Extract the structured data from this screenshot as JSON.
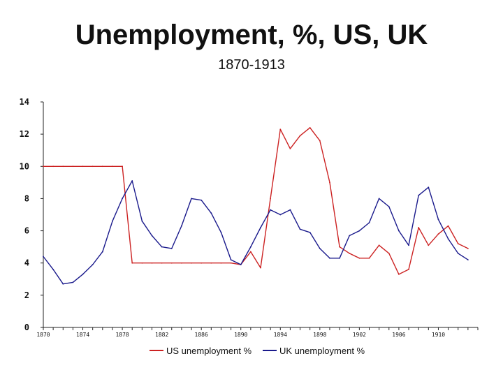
{
  "title": "Unemployment, %, US, UK",
  "subtitle": "1870-1913",
  "chart_data": {
    "type": "line",
    "title": "Unemployment, %, US, UK",
    "subtitle": "1870-1913",
    "xlabel": "",
    "ylabel": "",
    "xlim": [
      1870,
      1914
    ],
    "ylim": [
      0,
      14
    ],
    "y_ticks": [
      0,
      2,
      4,
      6,
      8,
      10,
      12,
      14
    ],
    "x_ticks": [
      1870,
      1874,
      1878,
      1882,
      1886,
      1890,
      1894,
      1898,
      1902,
      1906,
      1910
    ],
    "grid": false,
    "legend_position": "bottom",
    "x": [
      1870,
      1871,
      1872,
      1873,
      1874,
      1875,
      1876,
      1877,
      1878,
      1879,
      1880,
      1881,
      1882,
      1883,
      1884,
      1885,
      1886,
      1887,
      1888,
      1889,
      1890,
      1891,
      1892,
      1893,
      1894,
      1895,
      1896,
      1897,
      1898,
      1899,
      1900,
      1901,
      1902,
      1903,
      1904,
      1905,
      1906,
      1907,
      1908,
      1909,
      1910,
      1911,
      1912,
      1913
    ],
    "series": [
      {
        "name": "US unemployment %",
        "color": "#cc2222",
        "values": [
          10,
          10,
          10,
          10,
          10,
          10,
          10,
          10,
          10,
          4,
          4,
          4,
          4,
          4,
          4,
          4,
          4,
          4,
          4,
          4,
          3.9,
          4.7,
          3.7,
          8,
          12.3,
          11.1,
          11.9,
          12.4,
          11.6,
          9,
          5,
          4.6,
          4.3,
          4.3,
          5.1,
          4.6,
          3.3,
          3.6,
          6.2,
          5.1,
          5.8,
          6.3,
          5.2,
          4.9
        ]
      },
      {
        "name": "UK unemployment %",
        "color": "#1a1a8c",
        "values": [
          4.4,
          3.6,
          2.7,
          2.8,
          3.3,
          3.9,
          4.7,
          6.6,
          8,
          9.1,
          6.6,
          5.7,
          5,
          4.9,
          6.3,
          8,
          7.9,
          7.1,
          5.9,
          4.2,
          3.9,
          5,
          6.2,
          7.3,
          7,
          7.3,
          6.1,
          5.9,
          4.9,
          4.3,
          4.3,
          5.7,
          6,
          6.5,
          8,
          7.5,
          6,
          5.1,
          8.2,
          8.7,
          6.7,
          5.5,
          4.6,
          4.2
        ]
      }
    ]
  }
}
